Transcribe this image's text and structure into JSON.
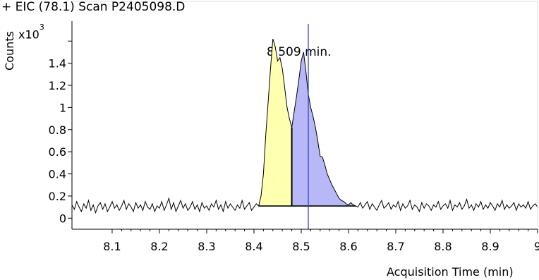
{
  "chart_data": {
    "type": "line",
    "title": "+ EIC (78.1) Scan P2405098.D",
    "xlabel": "Acquisition Time (min)",
    "ylabel": "Counts",
    "yexp_base": "x10",
    "yexp_power": "3",
    "xlim": [
      8.015,
      9.0
    ],
    "ylim": [
      -0.1,
      1.78
    ],
    "xticks": [
      "8.1",
      "8.2",
      "8.3",
      "8.4",
      "8.5",
      "8.6",
      "8.7",
      "8.8",
      "8.9",
      "9"
    ],
    "yticks": [
      "0",
      "0.2",
      "0.4",
      "0.6",
      "0.8",
      "1",
      "1.2",
      "1.4"
    ],
    "grid": false,
    "peaks": [
      {
        "x_start": 8.41,
        "x_end": 8.48,
        "color": "#ffffb0"
      },
      {
        "x_start": 8.48,
        "x_end": 8.615,
        "color": "#b8b8f8"
      }
    ],
    "marker_x": 8.515,
    "annotation": "8.509 min.",
    "peak_baseline": 0.11,
    "series": [
      {
        "x": [
          8.015,
          8.02,
          8.025,
          8.03,
          8.035,
          8.04,
          8.045,
          8.05,
          8.055,
          8.06,
          8.065,
          8.07,
          8.075,
          8.08,
          8.085,
          8.09,
          8.095,
          8.1,
          8.105,
          8.11,
          8.115,
          8.12,
          8.125,
          8.13,
          8.135,
          8.14,
          8.145,
          8.15,
          8.155,
          8.16,
          8.165,
          8.17,
          8.175,
          8.18,
          8.185,
          8.19,
          8.195,
          8.2,
          8.205,
          8.21,
          8.215,
          8.22,
          8.225,
          8.23,
          8.235,
          8.24,
          8.245,
          8.25,
          8.255,
          8.26,
          8.265,
          8.27,
          8.275,
          8.28,
          8.285,
          8.29,
          8.295,
          8.3,
          8.305,
          8.31,
          8.315,
          8.32,
          8.325,
          8.33,
          8.335,
          8.34,
          8.345,
          8.35,
          8.355,
          8.36,
          8.365,
          8.37,
          8.375,
          8.38,
          8.385,
          8.39,
          8.395,
          8.4,
          8.405,
          8.41,
          8.415,
          8.42,
          8.425,
          8.43,
          8.435,
          8.44,
          8.445,
          8.45,
          8.455,
          8.46,
          8.465,
          8.47,
          8.475,
          8.48,
          8.485,
          8.49,
          8.495,
          8.5,
          8.505,
          8.51,
          8.515,
          8.52,
          8.525,
          8.53,
          8.535,
          8.54,
          8.545,
          8.55,
          8.555,
          8.56,
          8.565,
          8.57,
          8.575,
          8.58,
          8.585,
          8.59,
          8.595,
          8.6,
          8.605,
          8.61,
          8.615,
          8.62,
          8.625,
          8.63,
          8.635,
          8.64,
          8.645,
          8.65,
          8.655,
          8.66,
          8.665,
          8.67,
          8.675,
          8.68,
          8.685,
          8.69,
          8.695,
          8.7,
          8.705,
          8.71,
          8.715,
          8.72,
          8.725,
          8.73,
          8.735,
          8.74,
          8.745,
          8.75,
          8.755,
          8.76,
          8.765,
          8.77,
          8.775,
          8.78,
          8.785,
          8.79,
          8.795,
          8.8,
          8.805,
          8.81,
          8.815,
          8.82,
          8.825,
          8.83,
          8.835,
          8.84,
          8.845,
          8.85,
          8.855,
          8.86,
          8.865,
          8.87,
          8.875,
          8.88,
          8.885,
          8.89,
          8.895,
          8.9,
          8.905,
          8.91,
          8.915,
          8.92,
          8.925,
          8.93,
          8.935,
          8.94,
          8.945,
          8.95,
          8.955,
          8.96,
          8.965,
          8.97,
          8.975,
          8.98,
          8.985,
          8.99,
          8.995,
          9.0
        ],
        "y": [
          0.12,
          0.08,
          0.15,
          0.1,
          0.06,
          0.13,
          0.09,
          0.16,
          0.07,
          0.12,
          0.05,
          0.11,
          0.14,
          0.08,
          0.13,
          0.06,
          0.1,
          0.15,
          0.09,
          0.12,
          0.07,
          0.11,
          0.16,
          0.08,
          0.13,
          0.1,
          0.06,
          0.14,
          0.09,
          0.12,
          0.07,
          0.15,
          0.1,
          0.08,
          0.13,
          0.06,
          0.11,
          0.09,
          0.15,
          0.07,
          0.12,
          0.18,
          0.08,
          0.14,
          0.06,
          0.11,
          0.16,
          0.09,
          0.13,
          0.07,
          0.1,
          0.15,
          0.08,
          0.12,
          0.06,
          0.14,
          0.09,
          0.11,
          0.07,
          0.13,
          0.1,
          0.16,
          0.08,
          0.12,
          0.06,
          0.15,
          0.09,
          0.13,
          0.1,
          0.07,
          0.12,
          0.09,
          0.16,
          0.08,
          0.11,
          0.14,
          0.07,
          0.1,
          0.13,
          0.11,
          0.2,
          0.4,
          0.75,
          1.05,
          1.35,
          1.62,
          1.55,
          1.42,
          1.45,
          1.35,
          1.18,
          1.0,
          0.9,
          0.82,
          0.96,
          1.1,
          1.25,
          1.42,
          1.5,
          1.32,
          1.12,
          1.0,
          0.92,
          0.82,
          0.7,
          0.56,
          0.55,
          0.48,
          0.4,
          0.35,
          0.3,
          0.26,
          0.22,
          0.18,
          0.16,
          0.15,
          0.13,
          0.12,
          0.14,
          0.12,
          0.11,
          0.1,
          0.14,
          0.09,
          0.12,
          0.15,
          0.08,
          0.13,
          0.1,
          0.07,
          0.12,
          0.16,
          0.09,
          0.11,
          0.14,
          0.08,
          0.12,
          0.1,
          0.15,
          0.07,
          0.13,
          0.09,
          0.11,
          0.16,
          0.08,
          0.12,
          0.1,
          0.06,
          0.14,
          0.09,
          0.13,
          0.11,
          0.07,
          0.12,
          0.1,
          0.15,
          0.08,
          0.11,
          0.13,
          0.09,
          0.16,
          0.07,
          0.12,
          0.1,
          0.14,
          0.08,
          0.11,
          0.17,
          0.09,
          0.12,
          0.07,
          0.13,
          0.1,
          0.15,
          0.08,
          0.12,
          0.09,
          0.14,
          0.11,
          0.07,
          0.13,
          0.1,
          0.16,
          0.08,
          0.12,
          0.09,
          0.11,
          0.14,
          0.07,
          0.13,
          0.1,
          0.12,
          0.09,
          0.15,
          0.08,
          0.11,
          0.13,
          0.1
        ]
      }
    ]
  }
}
